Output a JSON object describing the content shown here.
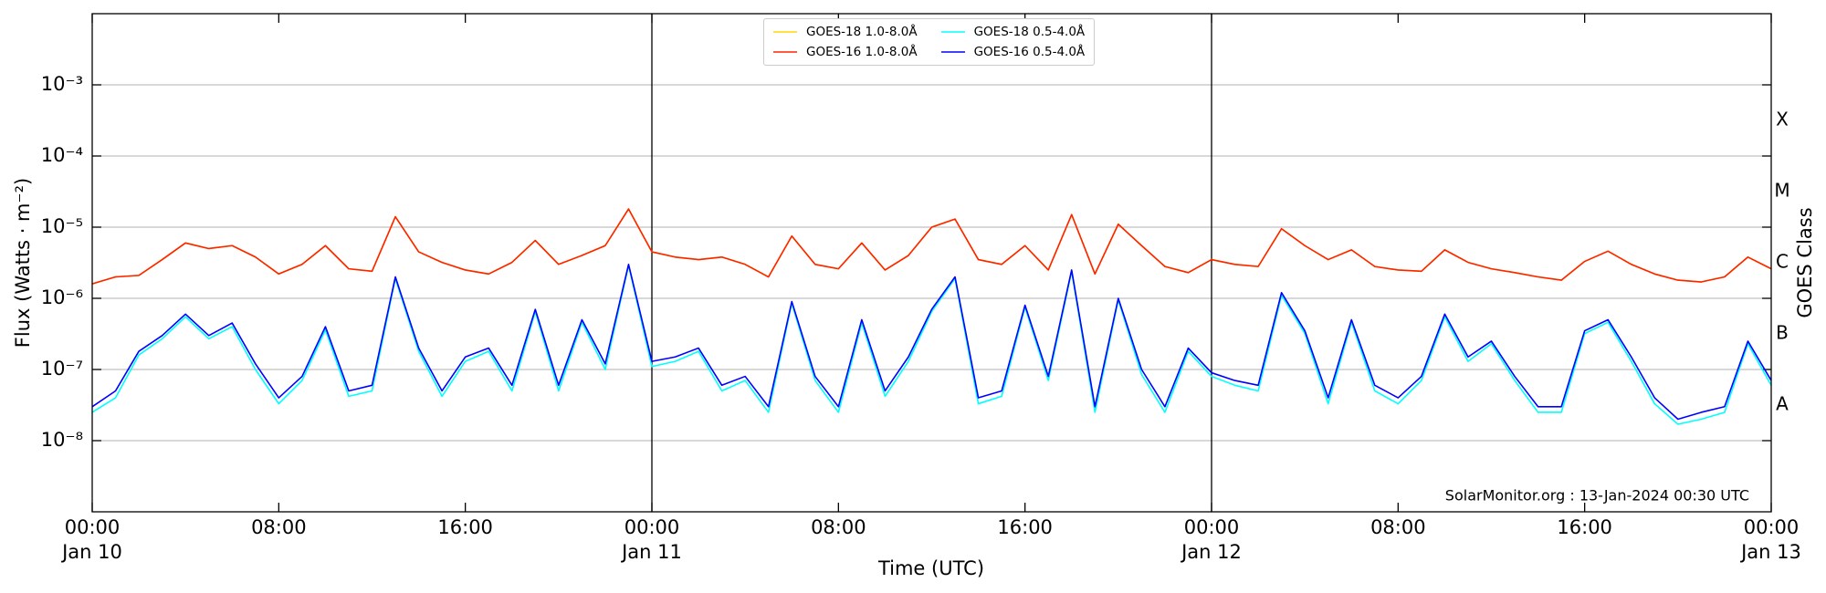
{
  "chart_data": {
    "type": "line",
    "yscale": "log",
    "xlabel": "Time (UTC)",
    "ylabel": "Flux (Watts · m⁻²)",
    "y2label": "GOES Class",
    "annotation": "SolarMonitor.org : 13-Jan-2024 00:30 UTC",
    "legend": "upper center",
    "grid": true,
    "xlim": [
      "Jan 10 00:00",
      "Jan 13 00:00"
    ],
    "xticks": [
      {
        "value": "Jan 10 00:00",
        "label": "00:00\nJan 10"
      },
      {
        "value": "Jan 10 08:00",
        "label": "08:00"
      },
      {
        "value": "Jan 10 16:00",
        "label": "16:00"
      },
      {
        "value": "Jan 11 00:00",
        "label": "00:00\nJan 11"
      },
      {
        "value": "Jan 11 08:00",
        "label": "08:00"
      },
      {
        "value": "Jan 11 16:00",
        "label": "16:00"
      },
      {
        "value": "Jan 12 00:00",
        "label": "00:00\nJan 12"
      },
      {
        "value": "Jan 12 08:00",
        "label": "08:00"
      },
      {
        "value": "Jan 12 16:00",
        "label": "16:00"
      },
      {
        "value": "Jan 13 00:00",
        "label": "00:00\nJan 13"
      }
    ],
    "vlines": [
      "Jan 11 00:00",
      "Jan 12 00:00"
    ],
    "ylim": [
      1e-09,
      0.01
    ],
    "yticks": [
      {
        "value": 1e-08,
        "label": "10⁻⁸"
      },
      {
        "value": 1e-07,
        "label": "10⁻⁷"
      },
      {
        "value": 1e-06,
        "label": "10⁻⁶"
      },
      {
        "value": 1e-05,
        "label": "10⁻⁵"
      },
      {
        "value": 0.0001,
        "label": "10⁻⁴"
      },
      {
        "value": 0.001,
        "label": "10⁻³"
      }
    ],
    "y2lim": [
      1e-09,
      0.01
    ],
    "y2ticks": [
      {
        "value": 3.16e-08,
        "label": "A"
      },
      {
        "value": 3.16e-07,
        "label": "B"
      },
      {
        "value": 3.16e-06,
        "label": "C"
      },
      {
        "value": 3.16e-05,
        "label": "M"
      },
      {
        "value": 0.000316,
        "label": "X"
      }
    ],
    "x": [
      "Jan 10 00:00",
      "Jan 10 01:00",
      "Jan 10 02:00",
      "Jan 10 03:00",
      "Jan 10 04:00",
      "Jan 10 05:00",
      "Jan 10 06:00",
      "Jan 10 07:00",
      "Jan 10 08:00",
      "Jan 10 09:00",
      "Jan 10 10:00",
      "Jan 10 11:00",
      "Jan 10 12:00",
      "Jan 10 13:00",
      "Jan 10 14:00",
      "Jan 10 15:00",
      "Jan 10 16:00",
      "Jan 10 17:00",
      "Jan 10 18:00",
      "Jan 10 19:00",
      "Jan 10 20:00",
      "Jan 10 21:00",
      "Jan 10 22:00",
      "Jan 10 23:00",
      "Jan 11 00:00",
      "Jan 11 01:00",
      "Jan 11 02:00",
      "Jan 11 03:00",
      "Jan 11 04:00",
      "Jan 11 05:00",
      "Jan 11 06:00",
      "Jan 11 07:00",
      "Jan 11 08:00",
      "Jan 11 09:00",
      "Jan 11 10:00",
      "Jan 11 11:00",
      "Jan 11 12:00",
      "Jan 11 13:00",
      "Jan 11 14:00",
      "Jan 11 15:00",
      "Jan 11 16:00",
      "Jan 11 17:00",
      "Jan 11 18:00",
      "Jan 11 19:00",
      "Jan 11 20:00",
      "Jan 11 21:00",
      "Jan 11 22:00",
      "Jan 11 23:00",
      "Jan 12 00:00",
      "Jan 12 01:00",
      "Jan 12 02:00",
      "Jan 12 03:00",
      "Jan 12 04:00",
      "Jan 12 05:00",
      "Jan 12 06:00",
      "Jan 12 07:00",
      "Jan 12 08:00",
      "Jan 12 09:00",
      "Jan 12 10:00",
      "Jan 12 11:00",
      "Jan 12 12:00",
      "Jan 12 13:00",
      "Jan 12 14:00",
      "Jan 12 15:00",
      "Jan 12 16:00",
      "Jan 12 17:00",
      "Jan 12 18:00",
      "Jan 12 19:00",
      "Jan 12 20:00",
      "Jan 12 21:00",
      "Jan 12 22:00",
      "Jan 12 23:00",
      "Jan 13 00:00"
    ],
    "series": [
      {
        "name": "GOES-18 1.0-8.0Å",
        "color": "#ffd700",
        "values": [
          1.6e-06,
          2e-06,
          2.1e-06,
          3.5e-06,
          6e-06,
          5e-06,
          5.5e-06,
          3.8e-06,
          2.2e-06,
          3e-06,
          5.5e-06,
          2.6e-06,
          2.4e-06,
          1.4e-05,
          4.5e-06,
          3.2e-06,
          2.5e-06,
          2.2e-06,
          3.2e-06,
          6.5e-06,
          3e-06,
          4e-06,
          5.5e-06,
          1.8e-05,
          4.5e-06,
          3.8e-06,
          3.5e-06,
          3.8e-06,
          3e-06,
          2e-06,
          7.5e-06,
          3e-06,
          2.6e-06,
          6e-06,
          2.5e-06,
          4e-06,
          1e-05,
          1.3e-05,
          3.5e-06,
          3e-06,
          5.5e-06,
          2.5e-06,
          1.5e-05,
          2.2e-06,
          1.1e-05,
          5.5e-06,
          2.8e-06,
          2.3e-06,
          3.5e-06,
          3e-06,
          2.8e-06,
          9.5e-06,
          5.5e-06,
          3.5e-06,
          4.8e-06,
          2.8e-06,
          2.5e-06,
          2.4e-06,
          4.8e-06,
          3.2e-06,
          2.6e-06,
          2.3e-06,
          2e-06,
          1.8e-06,
          3.3e-06,
          4.6e-06,
          3e-06,
          2.2e-06,
          1.8e-06,
          1.7e-06,
          2e-06,
          3.8e-06,
          2.6e-06
        ]
      },
      {
        "name": "GOES-16 1.0-8.0Å",
        "color": "#ff2200",
        "values": [
          1.6e-06,
          2e-06,
          2.1e-06,
          3.5e-06,
          6e-06,
          5e-06,
          5.5e-06,
          3.8e-06,
          2.2e-06,
          3e-06,
          5.5e-06,
          2.6e-06,
          2.4e-06,
          1.4e-05,
          4.5e-06,
          3.2e-06,
          2.5e-06,
          2.2e-06,
          3.2e-06,
          6.5e-06,
          3e-06,
          4e-06,
          5.5e-06,
          1.8e-05,
          4.5e-06,
          3.8e-06,
          3.5e-06,
          3.8e-06,
          3e-06,
          2e-06,
          7.5e-06,
          3e-06,
          2.6e-06,
          6e-06,
          2.5e-06,
          4e-06,
          1e-05,
          1.3e-05,
          3.5e-06,
          3e-06,
          5.5e-06,
          2.5e-06,
          1.5e-05,
          2.2e-06,
          1.1e-05,
          5.5e-06,
          2.8e-06,
          2.3e-06,
          3.5e-06,
          3e-06,
          2.8e-06,
          9.5e-06,
          5.5e-06,
          3.5e-06,
          4.8e-06,
          2.8e-06,
          2.5e-06,
          2.4e-06,
          4.8e-06,
          3.2e-06,
          2.6e-06,
          2.3e-06,
          2e-06,
          1.8e-06,
          3.3e-06,
          4.6e-06,
          3e-06,
          2.2e-06,
          1.8e-06,
          1.7e-06,
          2e-06,
          3.8e-06,
          2.6e-06
        ]
      },
      {
        "name": "GOES-18 0.5-4.0Å",
        "color": "#00ffff",
        "values": [
          2.5e-08,
          4e-08,
          1.6e-07,
          2.7e-07,
          5.5e-07,
          2.7e-07,
          4e-07,
          1e-07,
          3.3e-08,
          7e-08,
          3.6e-07,
          4.2e-08,
          5e-08,
          1.9e-06,
          1.8e-07,
          4.2e-08,
          1.3e-07,
          1.8e-07,
          5e-08,
          6.5e-07,
          5e-08,
          4.6e-07,
          1e-07,
          2.9e-06,
          1.1e-07,
          1.3e-07,
          1.8e-07,
          5e-08,
          7e-08,
          2.5e-08,
          8.5e-07,
          7e-08,
          2.5e-08,
          4.5e-07,
          4.2e-08,
          1.3e-07,
          6.5e-07,
          1.9e-06,
          3.3e-08,
          4.2e-08,
          7.5e-07,
          7e-08,
          2.4e-06,
          2.5e-08,
          9.5e-07,
          8.5e-08,
          2.5e-08,
          1.8e-07,
          8e-08,
          6e-08,
          5e-08,
          1.1e-06,
          3.2e-07,
          3.3e-08,
          4.6e-07,
          5e-08,
          3.3e-08,
          7e-08,
          5.5e-07,
          1.3e-07,
          2.3e-07,
          7e-08,
          2.5e-08,
          2.5e-08,
          3.2e-07,
          4.6e-07,
          1.3e-07,
          3.3e-08,
          1.7e-08,
          2e-08,
          2.5e-08,
          2.3e-07,
          6e-08
        ]
      },
      {
        "name": "GOES-16 0.5-4.0Å",
        "color": "#0000ff",
        "values": [
          3e-08,
          5e-08,
          1.8e-07,
          3e-07,
          6e-07,
          3e-07,
          4.5e-07,
          1.2e-07,
          4e-08,
          8e-08,
          4e-07,
          5e-08,
          6e-08,
          2e-06,
          2e-07,
          5e-08,
          1.5e-07,
          2e-07,
          6e-08,
          7e-07,
          6e-08,
          5e-07,
          1.2e-07,
          3e-06,
          1.3e-07,
          1.5e-07,
          2e-07,
          6e-08,
          8e-08,
          3e-08,
          9e-07,
          8e-08,
          3e-08,
          5e-07,
          5e-08,
          1.5e-07,
          7e-07,
          2e-06,
          4e-08,
          5e-08,
          8e-07,
          8e-08,
          2.5e-06,
          3e-08,
          1e-06,
          1e-07,
          3e-08,
          2e-07,
          9e-08,
          7e-08,
          6e-08,
          1.2e-06,
          3.5e-07,
          4e-08,
          5e-07,
          6e-08,
          4e-08,
          8e-08,
          6e-07,
          1.5e-07,
          2.5e-07,
          8e-08,
          3e-08,
          3e-08,
          3.5e-07,
          5e-07,
          1.5e-07,
          4e-08,
          2e-08,
          2.5e-08,
          3e-08,
          2.5e-07,
          7e-08
        ]
      }
    ]
  }
}
